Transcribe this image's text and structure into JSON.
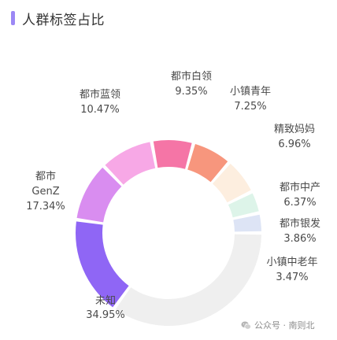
{
  "header": {
    "title": "人群标签占比"
  },
  "colors": {
    "accent": "#9c88f5"
  },
  "chart_data": {
    "type": "pie",
    "title": "人群标签占比",
    "donut": true,
    "slices": [
      {
        "label": "未知",
        "value": 34.95,
        "value_text": "34.95%",
        "color": "#efefef"
      },
      {
        "label": "都市GenZ",
        "value": 17.34,
        "value_text": "17.34%",
        "color": "#8f66f5"
      },
      {
        "label": "都市蓝领",
        "value": 10.47,
        "value_text": "10.47%",
        "color": "#d98df0"
      },
      {
        "label": "都市白领",
        "value": 9.35,
        "value_text": "9.35%",
        "color": "#f7a8e6"
      },
      {
        "label": "小镇青年",
        "value": 7.25,
        "value_text": "7.25%",
        "color": "#f575a6"
      },
      {
        "label": "精致妈妈",
        "value": 6.96,
        "value_text": "6.96%",
        "color": "#f7967d"
      },
      {
        "label": "都市中产",
        "value": 6.37,
        "value_text": "6.37%",
        "color": "#fdeedf"
      },
      {
        "label": "都市银发",
        "value": 3.86,
        "value_text": "3.86%",
        "color": "#ddf4e9"
      },
      {
        "label": "小镇中老年",
        "value": 3.47,
        "value_text": "3.47%",
        "color": "#dde4f5"
      }
    ]
  },
  "watermark": {
    "text": "公众号 · 南则北",
    "icon": "wechat-icon"
  }
}
